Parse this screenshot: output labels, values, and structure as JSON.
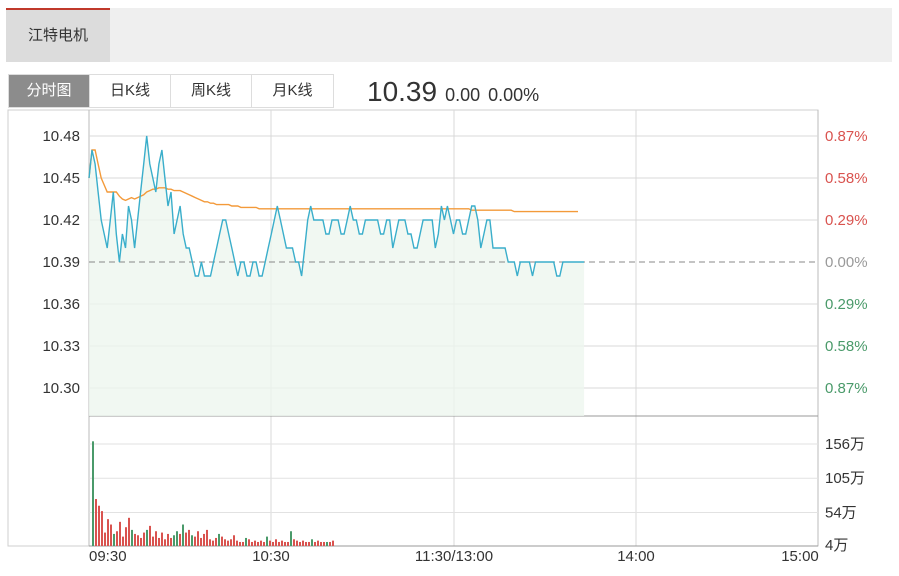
{
  "stock": {
    "name": "江特电机"
  },
  "tabs": [
    {
      "label": "分时图",
      "active": true
    },
    {
      "label": "日K线",
      "active": false
    },
    {
      "label": "周K线",
      "active": false
    },
    {
      "label": "月K线",
      "active": false
    }
  ],
  "quote": {
    "price": "10.39",
    "change": "0.00",
    "change_pct": "0.00%"
  },
  "chart_data": {
    "type": "line",
    "x_ticks": [
      "09:30",
      "10:30",
      "11:30/13:00",
      "14:00",
      "15:00"
    ],
    "price_axis": {
      "labels": [
        "10.48",
        "10.45",
        "10.42",
        "10.39",
        "10.36",
        "10.33",
        "10.30"
      ],
      "values": [
        10.48,
        10.45,
        10.42,
        10.39,
        10.36,
        10.33,
        10.3
      ],
      "ylim": [
        10.28,
        10.49
      ],
      "prev_close": 10.39
    },
    "pct_axis": {
      "labels": [
        "0.87%",
        "0.58%",
        "0.29%",
        "0.00%",
        "0.29%",
        "0.58%",
        "0.87%"
      ]
    },
    "volume_axis": {
      "labels": [
        "156万",
        "105万",
        "54万",
        "4万"
      ],
      "values": [
        156,
        105,
        54,
        4
      ]
    },
    "colors": {
      "price": "#3aaecb",
      "avg": "#f39a3a",
      "up": "#d9534f",
      "down": "#4a9a6a",
      "grid": "#d8d8d8"
    },
    "series": [
      {
        "values": [
          10.45,
          10.47,
          10.46,
          10.44,
          10.42,
          10.41,
          10.4,
          10.42,
          10.44,
          10.41,
          10.39,
          10.41,
          10.4,
          10.43,
          10.42,
          10.4,
          10.42,
          10.44,
          10.46,
          10.48,
          10.46,
          10.45,
          10.44,
          10.46,
          10.47,
          10.45,
          10.43,
          10.44,
          10.41,
          10.42,
          10.43,
          10.41,
          10.4,
          10.4,
          10.39,
          10.38,
          10.38,
          10.39,
          10.38,
          10.38,
          10.38,
          10.39,
          10.4,
          10.41,
          10.42,
          10.42,
          10.41,
          10.4,
          10.39,
          10.38,
          10.39,
          10.39,
          10.38,
          10.38,
          10.39,
          10.39,
          10.38,
          10.38,
          10.39,
          10.4,
          10.41,
          10.42,
          10.43,
          10.42,
          10.41,
          10.4,
          10.4,
          10.4,
          10.39,
          10.39,
          10.38,
          10.4,
          10.42,
          10.43,
          10.42,
          10.42,
          10.42,
          10.42,
          10.41,
          10.41,
          10.42,
          10.42,
          10.42,
          10.41,
          10.41,
          10.42,
          10.43,
          10.42,
          10.42,
          10.41,
          10.41,
          10.42,
          10.42,
          10.42,
          10.42,
          10.42,
          10.41,
          10.41,
          10.42,
          10.42,
          10.4,
          10.41,
          10.42,
          10.42,
          10.42,
          10.41,
          10.41,
          10.4,
          10.4,
          10.41,
          10.42,
          10.42,
          10.42,
          10.42,
          10.4,
          10.41,
          10.43,
          10.42,
          10.43,
          10.42,
          10.41,
          10.42,
          10.42,
          10.41,
          10.41,
          10.42,
          10.43,
          10.43,
          10.42,
          10.4,
          10.41,
          10.42,
          10.42,
          10.4,
          10.4,
          10.4,
          10.4,
          10.4,
          10.39,
          10.39,
          10.39,
          10.38,
          10.39,
          10.39,
          10.39,
          10.39,
          10.38,
          10.39,
          10.39,
          10.39,
          10.39,
          10.39,
          10.39,
          10.39,
          10.38,
          10.38,
          10.39,
          10.39,
          10.39,
          10.39,
          10.39,
          10.39,
          10.39,
          10.39
        ]
      },
      {
        "values": [
          10.45,
          10.47,
          10.47,
          10.46,
          10.45,
          10.445,
          10.44,
          10.44,
          10.44,
          10.44,
          10.437,
          10.435,
          10.434,
          10.435,
          10.436,
          10.435,
          10.436,
          10.437,
          10.438,
          10.44,
          10.441,
          10.442,
          10.442,
          10.443,
          10.443,
          10.443,
          10.442,
          10.442,
          10.441,
          10.441,
          10.441,
          10.44,
          10.439,
          10.438,
          10.437,
          10.436,
          10.435,
          10.434,
          10.433,
          10.433,
          10.432,
          10.432,
          10.431,
          10.431,
          10.431,
          10.431,
          10.431,
          10.43,
          10.43,
          10.43,
          10.429,
          10.429,
          10.429,
          10.429,
          10.429,
          10.429,
          10.428,
          10.428,
          10.428,
          10.428,
          10.428,
          10.428,
          10.428,
          10.428,
          10.428,
          10.428,
          10.428,
          10.428,
          10.428,
          10.428,
          10.428,
          10.428,
          10.428,
          10.428,
          10.428,
          10.428,
          10.428,
          10.428,
          10.428,
          10.428,
          10.428,
          10.428,
          10.428,
          10.428,
          10.428,
          10.428,
          10.428,
          10.428,
          10.428,
          10.428,
          10.428,
          10.428,
          10.428,
          10.428,
          10.428,
          10.428,
          10.428,
          10.428,
          10.428,
          10.428,
          10.428,
          10.428,
          10.428,
          10.428,
          10.428,
          10.428,
          10.428,
          10.428,
          10.428,
          10.428,
          10.428,
          10.428,
          10.428,
          10.428,
          10.428,
          10.428,
          10.428,
          10.428,
          10.428,
          10.428,
          10.428,
          10.428,
          10.428,
          10.428,
          10.428,
          10.428,
          10.427,
          10.427,
          10.427,
          10.427,
          10.427,
          10.427,
          10.427,
          10.427,
          10.427,
          10.427,
          10.427,
          10.427,
          10.427,
          10.427,
          10.426,
          10.426,
          10.426,
          10.426,
          10.426,
          10.426,
          10.426,
          10.426,
          10.426,
          10.426,
          10.426,
          10.426,
          10.426,
          10.426,
          10.426,
          10.426,
          10.426,
          10.426,
          10.426,
          10.426,
          10.426,
          10.426
        ]
      }
    ],
    "volume_bars": [
      {
        "v": 156,
        "up": false
      },
      {
        "v": 70,
        "up": true
      },
      {
        "v": 60,
        "up": true
      },
      {
        "v": 52,
        "up": true
      },
      {
        "v": 20,
        "up": true
      },
      {
        "v": 40,
        "up": true
      },
      {
        "v": 32,
        "up": true
      },
      {
        "v": 18,
        "up": false
      },
      {
        "v": 22,
        "up": true
      },
      {
        "v": 36,
        "up": true
      },
      {
        "v": 14,
        "up": true
      },
      {
        "v": 28,
        "up": true
      },
      {
        "v": 42,
        "up": true
      },
      {
        "v": 24,
        "up": false
      },
      {
        "v": 18,
        "up": true
      },
      {
        "v": 16,
        "up": true
      },
      {
        "v": 12,
        "up": true
      },
      {
        "v": 20,
        "up": true
      },
      {
        "v": 24,
        "up": false
      },
      {
        "v": 30,
        "up": true
      },
      {
        "v": 14,
        "up": true
      },
      {
        "v": 22,
        "up": true
      },
      {
        "v": 12,
        "up": true
      },
      {
        "v": 20,
        "up": true
      },
      {
        "v": 10,
        "up": true
      },
      {
        "v": 18,
        "up": true
      },
      {
        "v": 12,
        "up": true
      },
      {
        "v": 16,
        "up": false
      },
      {
        "v": 22,
        "up": false
      },
      {
        "v": 18,
        "up": true
      },
      {
        "v": 32,
        "up": false
      },
      {
        "v": 20,
        "up": true
      },
      {
        "v": 24,
        "up": true
      },
      {
        "v": 16,
        "up": false
      },
      {
        "v": 14,
        "up": true
      },
      {
        "v": 22,
        "up": true
      },
      {
        "v": 12,
        "up": true
      },
      {
        "v": 18,
        "up": true
      },
      {
        "v": 24,
        "up": true
      },
      {
        "v": 10,
        "up": true
      },
      {
        "v": 8,
        "up": true
      },
      {
        "v": 12,
        "up": true
      },
      {
        "v": 18,
        "up": false
      },
      {
        "v": 14,
        "up": true
      },
      {
        "v": 10,
        "up": true
      },
      {
        "v": 8,
        "up": true
      },
      {
        "v": 10,
        "up": true
      },
      {
        "v": 16,
        "up": true
      },
      {
        "v": 8,
        "up": true
      },
      {
        "v": 6,
        "up": true
      },
      {
        "v": 6,
        "up": true
      },
      {
        "v": 12,
        "up": false
      },
      {
        "v": 10,
        "up": true
      },
      {
        "v": 6,
        "up": true
      },
      {
        "v": 8,
        "up": true
      },
      {
        "v": 6,
        "up": true
      },
      {
        "v": 8,
        "up": true
      },
      {
        "v": 6,
        "up": true
      },
      {
        "v": 14,
        "up": false
      },
      {
        "v": 8,
        "up": true
      },
      {
        "v": 6,
        "up": true
      },
      {
        "v": 10,
        "up": true
      },
      {
        "v": 6,
        "up": true
      },
      {
        "v": 8,
        "up": true
      },
      {
        "v": 6,
        "up": true
      },
      {
        "v": 6,
        "up": true
      },
      {
        "v": 22,
        "up": false
      },
      {
        "v": 10,
        "up": true
      },
      {
        "v": 8,
        "up": true
      },
      {
        "v": 6,
        "up": true
      },
      {
        "v": 8,
        "up": true
      },
      {
        "v": 6,
        "up": true
      },
      {
        "v": 6,
        "up": true
      },
      {
        "v": 10,
        "up": false
      },
      {
        "v": 6,
        "up": true
      },
      {
        "v": 8,
        "up": true
      },
      {
        "v": 6,
        "up": true
      },
      {
        "v": 6,
        "up": true
      },
      {
        "v": 6,
        "up": false
      },
      {
        "v": 6,
        "up": true
      },
      {
        "v": 8,
        "up": true
      }
    ]
  }
}
